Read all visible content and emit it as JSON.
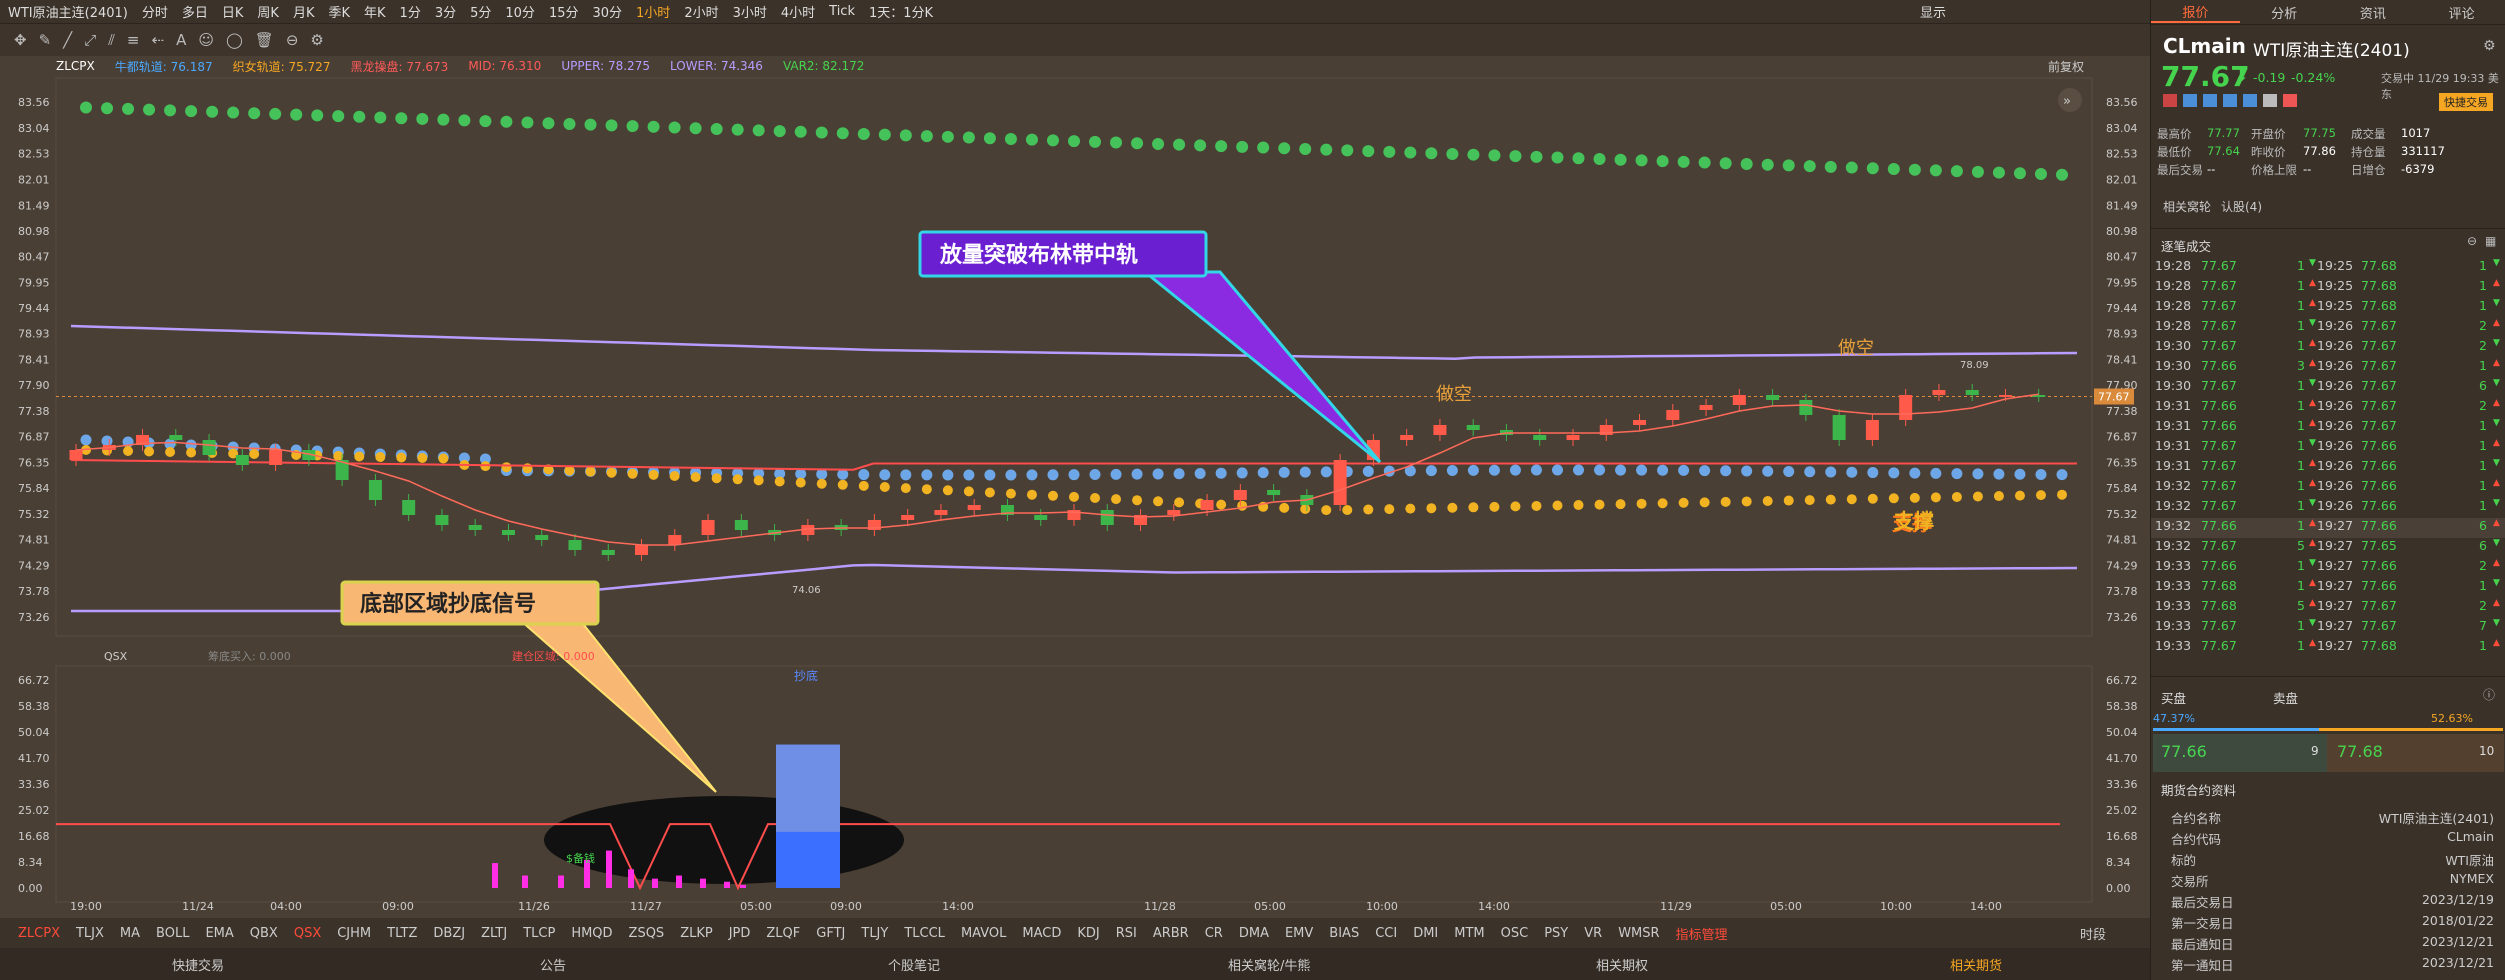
{
  "title": "WTI原油主连(2401)",
  "periods": [
    "分时",
    "多日",
    "日K",
    "周K",
    "月K",
    "季K",
    "年K",
    "1分",
    "3分",
    "5分",
    "10分",
    "15分",
    "30分",
    "1小时",
    "2小时",
    "3小时",
    "4小时",
    "Tick",
    "1天：1分K"
  ],
  "active_period": "1小时",
  "toolbar_right": "显示",
  "indicator_line": {
    "name": "ZLCPX",
    "items": [
      {
        "label": "牛都轨道: 76.187",
        "color": "#4aa8ff"
      },
      {
        "label": "织女轨道: 75.727",
        "color": "#f5a623"
      },
      {
        "label": "黑龙操盘: 77.673",
        "color": "#ff5a5a"
      },
      {
        "label": "MID: 76.310",
        "color": "#ff5a5a"
      },
      {
        "label": "UPPER: 78.275",
        "color": "#b89cff"
      },
      {
        "label": "LOWER: 74.346",
        "color": "#b89cff"
      },
      {
        "label": "VAR2: 82.172",
        "color": "#46d34e"
      }
    ],
    "right_label": "前复权"
  },
  "qsx_line": {
    "name": "QSX",
    "items": [
      "筹底买入: 0.000",
      "建仓区域: 0.000"
    ],
    "center_label": "抄底"
  },
  "price_ticks": [
    "83.56",
    "83.04",
    "82.53",
    "82.01",
    "81.49",
    "80.98",
    "80.47",
    "79.95",
    "79.44",
    "78.93",
    "78.41",
    "77.90",
    "77.38",
    "76.87",
    "76.35",
    "75.84",
    "75.32",
    "74.81",
    "74.29",
    "73.78",
    "73.26"
  ],
  "current_price_tag": "77.67",
  "ind_ticks": [
    "66.72",
    "58.38",
    "50.04",
    "41.70",
    "33.36",
    "25.02",
    "16.68",
    "8.34",
    "0.00"
  ],
  "time_labels": [
    "19:00",
    "11/24",
    "04:00",
    "09:00",
    "11/26",
    "11/27",
    "05:00",
    "09:00",
    "14:00",
    "11/28",
    "05:00",
    "10:00",
    "14:00",
    "11/29",
    "05:00",
    "10:00",
    "14:00"
  ],
  "annotations": {
    "breakout": "放量突破布林带中轨",
    "bottom_signal": "底部区域抄底信号",
    "short1": "做空",
    "short2": "做空",
    "support": "支撑",
    "low_value": "74.06",
    "high_value": "78.09",
    "lowrise": "$备钱"
  },
  "bottom_tabs": [
    "ZLCPX",
    "TLJX",
    "MA",
    "BOLL",
    "EMA",
    "QBX",
    "QSX",
    "CJHM",
    "TLTZ",
    "DBZJ",
    "ZLTJ",
    "TLCP",
    "HMQD",
    "ZSQS",
    "ZLKP",
    "JPD",
    "ZLQF",
    "GFTJ",
    "TLJY",
    "TLCCL",
    "MAVOL",
    "MACD",
    "KDJ",
    "RSI",
    "ARBR",
    "CR",
    "DMA",
    "EMV",
    "BIAS",
    "CCI",
    "DMI",
    "MTM",
    "OSC",
    "PSY",
    "VR",
    "WMSR",
    "指标管理"
  ],
  "bottom_right": "时段",
  "footer": [
    "快捷交易",
    "公告",
    "个股笔记",
    "相关窝轮/牛熊",
    "相关期权",
    "相关期货"
  ],
  "panel": {
    "tabs": [
      "报价",
      "分析",
      "资讯",
      "评论"
    ],
    "code": "CLmain",
    "name": "WTI原油主连(2401)",
    "price": "77.67",
    "change": "-0.19",
    "change_pct": "-0.24%",
    "trade_time": "交易中 11/29 19:33 美东",
    "quick_trade": "快捷交易",
    "stats": [
      [
        "最高价",
        "77.77",
        "开盘价",
        "77.75",
        "成交量",
        "1017"
      ],
      [
        "最低价",
        "77.64",
        "昨收价",
        "77.86",
        "持仓量",
        "331117"
      ],
      [
        "最后交易",
        "--",
        "价格上限",
        "--",
        "日增仓",
        "-6379"
      ]
    ],
    "links": [
      "相关窝轮",
      "认股(4)"
    ],
    "ticks_title": "逐笔成交",
    "ticks": [
      [
        "19:28",
        "77.67",
        "1",
        "19:25",
        "77.68",
        "1"
      ],
      [
        "19:28",
        "77.67",
        "1",
        "19:25",
        "77.68",
        "1"
      ],
      [
        "19:28",
        "77.67",
        "1",
        "19:25",
        "77.68",
        "1"
      ],
      [
        "19:28",
        "77.67",
        "1",
        "19:26",
        "77.67",
        "2"
      ],
      [
        "19:30",
        "77.67",
        "1",
        "19:26",
        "77.67",
        "2"
      ],
      [
        "19:30",
        "77.66",
        "3",
        "19:26",
        "77.67",
        "1"
      ],
      [
        "19:30",
        "77.67",
        "1",
        "19:26",
        "77.67",
        "6"
      ],
      [
        "19:31",
        "77.66",
        "1",
        "19:26",
        "77.67",
        "2"
      ],
      [
        "19:31",
        "77.66",
        "1",
        "19:26",
        "77.67",
        "1"
      ],
      [
        "19:31",
        "77.67",
        "1",
        "19:26",
        "77.66",
        "1"
      ],
      [
        "19:31",
        "77.67",
        "1",
        "19:26",
        "77.66",
        "1"
      ],
      [
        "19:32",
        "77.67",
        "1",
        "19:26",
        "77.66",
        "1"
      ],
      [
        "19:32",
        "77.67",
        "1",
        "19:26",
        "77.66",
        "1"
      ],
      [
        "19:32",
        "77.66",
        "1",
        "19:27",
        "77.66",
        "6"
      ],
      [
        "19:32",
        "77.67",
        "5",
        "19:27",
        "77.65",
        "6"
      ],
      [
        "19:33",
        "77.66",
        "1",
        "19:27",
        "77.66",
        "2"
      ],
      [
        "19:33",
        "77.68",
        "1",
        "19:27",
        "77.66",
        "1"
      ],
      [
        "19:33",
        "77.68",
        "5",
        "19:27",
        "77.67",
        "2"
      ],
      [
        "19:33",
        "77.67",
        "1",
        "19:27",
        "77.67",
        "7"
      ],
      [
        "19:33",
        "77.67",
        "1",
        "19:27",
        "77.68",
        "1"
      ]
    ],
    "bid_label": "买盘",
    "ask_label": "卖盘",
    "bid_pct": "47.37%",
    "ask_pct": "52.63%",
    "bid_price": "77.66",
    "bid_qty": "9",
    "ask_price": "77.68",
    "ask_qty": "10",
    "info_title": "期货合约资料",
    "info": [
      [
        "合约名称",
        "WTI原油主连(2401)"
      ],
      [
        "合约代码",
        "CLmain"
      ],
      [
        "标的",
        "WTI原油"
      ],
      [
        "交易所",
        "NYMEX"
      ],
      [
        "最后交易日",
        "2023/12/19"
      ],
      [
        "第一交易日",
        "2018/01/22"
      ],
      [
        "最后通知日",
        "2023/12/21"
      ],
      [
        "第一通知日",
        "2023/12/21"
      ]
    ]
  }
}
